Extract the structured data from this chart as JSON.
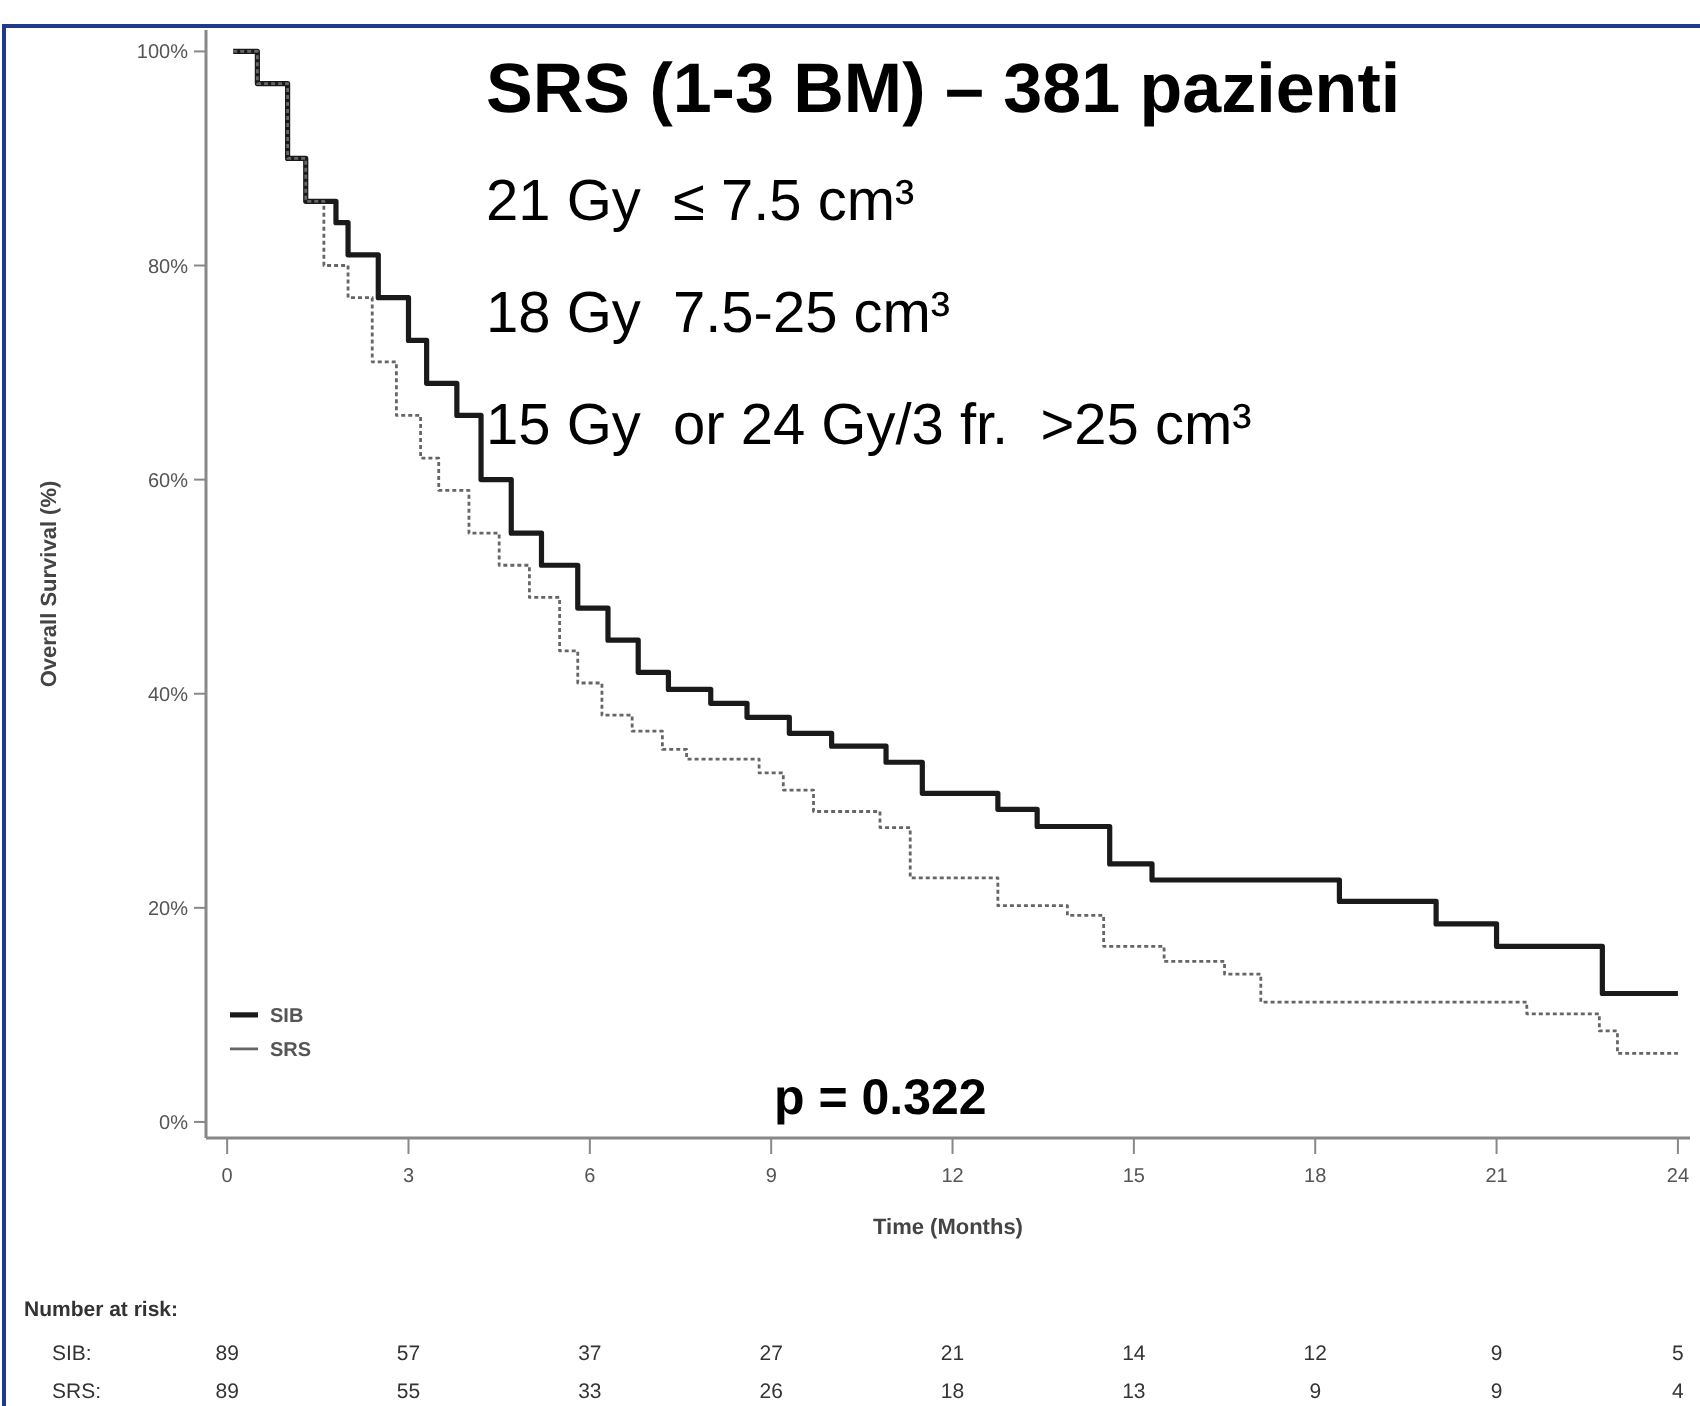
{
  "chart_data": {
    "type": "step",
    "title": "SRS (1-3 BM) – 381 pazienti",
    "xlabel": "Time (Months)",
    "ylabel": "Overall Survival (%)",
    "xlim": [
      -0.35,
      24.2
    ],
    "ylim": [
      -1.5,
      102
    ],
    "xticks": [
      0,
      3,
      6,
      9,
      12,
      15,
      18,
      21,
      24
    ],
    "yticks": [
      {
        "value": 0,
        "label": "0%"
      },
      {
        "value": 20,
        "label": "20%"
      },
      {
        "value": 40,
        "label": "40%"
      },
      {
        "value": 60,
        "label": "60%"
      },
      {
        "value": 80,
        "label": "80%"
      },
      {
        "value": 100,
        "label": "100%"
      }
    ],
    "legend": "bottom left",
    "grid": false,
    "series": [
      {
        "name": "SIB",
        "color": "#1a1a1a",
        "line_style": "solid",
        "x": [
          0.1,
          0.5,
          1.0,
          1.3,
          1.8,
          2.0,
          2.5,
          3.0,
          3.3,
          3.8,
          4.2,
          4.7,
          5.2,
          5.8,
          6.3,
          6.8,
          7.3,
          8.0,
          8.6,
          9.3,
          10.0,
          10.9,
          11.5,
          12.75,
          13.4,
          14.6,
          15.3,
          18.4,
          20.0,
          21.0,
          22.75,
          24.0
        ],
        "values": [
          100,
          97,
          90,
          86,
          84,
          81,
          77,
          73,
          69,
          66,
          60,
          55,
          52,
          48,
          45,
          42,
          40.4,
          39.1,
          37.8,
          36.3,
          35.1,
          33.6,
          30.7,
          29.2,
          27.6,
          24.1,
          22.6,
          20.6,
          18.5,
          16.4,
          12.0,
          12.0
        ]
      },
      {
        "name": "SRS",
        "color": "#666666",
        "line_style": "dotted",
        "x": [
          0.1,
          0.5,
          1.0,
          1.3,
          1.6,
          2.0,
          2.4,
          2.8,
          3.2,
          3.5,
          4.0,
          4.5,
          5.0,
          5.5,
          5.8,
          6.2,
          6.7,
          7.2,
          7.6,
          8.8,
          9.2,
          9.7,
          10.8,
          11.3,
          12.75,
          13.9,
          14.5,
          15.5,
          16.5,
          17.1,
          21.5,
          22.7,
          23.0,
          24.0
        ],
        "values": [
          100,
          97,
          90,
          86,
          80,
          77,
          71,
          66,
          62,
          59,
          55,
          52,
          49,
          44,
          41,
          38,
          36.5,
          34.8,
          33.9,
          32.6,
          31,
          29.0,
          27.5,
          22.8,
          20.2,
          19.3,
          16.4,
          15.0,
          13.8,
          11.2,
          10.1,
          8.5,
          6.4,
          6.4
        ]
      }
    ],
    "annotations": [
      "21 Gy  ≤ 7.5 cm³",
      "18 Gy  7.5-25 cm³",
      "15 Gy  or 24 Gy/3 fr.  >25 cm³",
      "p = 0.322",
      "Number at risk:",
      "SIB:",
      "89",
      "57",
      "37",
      "27",
      "21",
      "14",
      "12",
      "9",
      "5",
      "SRS:",
      "89",
      "55",
      "33",
      "26",
      "18",
      "13",
      "9",
      "9",
      "4"
    ]
  }
}
